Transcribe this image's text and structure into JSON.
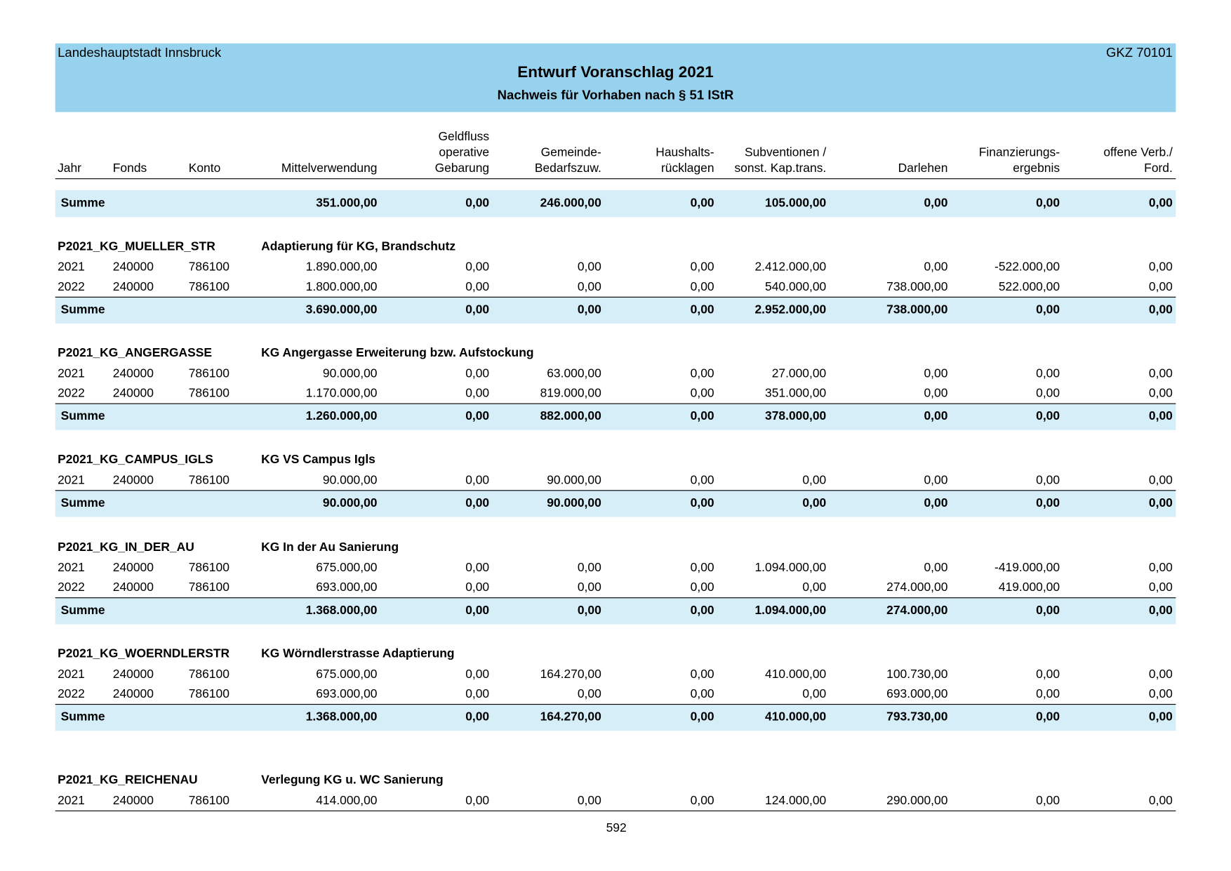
{
  "header": {
    "left": "Landeshauptstadt Innsbruck",
    "right": "GKZ 70101",
    "title": "Entwurf Voranschlag 2021",
    "subtitle": "Nachweis für Vorhaben nach § 51 IStR"
  },
  "columns": [
    [
      "Jahr"
    ],
    [
      "Fonds"
    ],
    [
      "Konto"
    ],
    [
      "Mittelverwendung"
    ],
    [
      "Geldfluss",
      "operative",
      "Gebarung"
    ],
    [
      "Gemeinde-",
      "Bedarfszuw."
    ],
    [
      "Haushalts-",
      "rücklagen"
    ],
    [
      "Subventionen /",
      "sonst. Kap.trans."
    ],
    [
      "Darlehen"
    ],
    [
      "Finanzierungs-",
      "ergebnis"
    ],
    [
      "offene Verb./",
      "Ford."
    ]
  ],
  "total": {
    "label": "Summe",
    "values": [
      "351.000,00",
      "0,00",
      "246.000,00",
      "0,00",
      "105.000,00",
      "0,00",
      "0,00",
      "0,00"
    ]
  },
  "sections": [
    {
      "code": "P2021_KG_MUELLER_STR",
      "description": "Adaptierung für KG, Brandschutz",
      "rows": [
        [
          "2021",
          "240000",
          "786100",
          "1.890.000,00",
          "0,00",
          "0,00",
          "0,00",
          "2.412.000,00",
          "0,00",
          "-522.000,00",
          "0,00"
        ],
        [
          "2022",
          "240000",
          "786100",
          "1.800.000,00",
          "0,00",
          "0,00",
          "0,00",
          "540.000,00",
          "738.000,00",
          "522.000,00",
          "0,00"
        ]
      ],
      "summe": {
        "label": "Summe",
        "values": [
          "3.690.000,00",
          "0,00",
          "0,00",
          "0,00",
          "2.952.000,00",
          "738.000,00",
          "0,00",
          "0,00"
        ]
      }
    },
    {
      "code": "P2021_KG_ANGERGASSE",
      "description": "KG Angergasse Erweiterung bzw. Aufstockung",
      "rows": [
        [
          "2021",
          "240000",
          "786100",
          "90.000,00",
          "0,00",
          "63.000,00",
          "0,00",
          "27.000,00",
          "0,00",
          "0,00",
          "0,00"
        ],
        [
          "2022",
          "240000",
          "786100",
          "1.170.000,00",
          "0,00",
          "819.000,00",
          "0,00",
          "351.000,00",
          "0,00",
          "0,00",
          "0,00"
        ]
      ],
      "summe": {
        "label": "Summe",
        "values": [
          "1.260.000,00",
          "0,00",
          "882.000,00",
          "0,00",
          "378.000,00",
          "0,00",
          "0,00",
          "0,00"
        ]
      }
    },
    {
      "code": "P2021_KG_CAMPUS_IGLS",
      "description": "KG VS Campus Igls",
      "rows": [
        [
          "2021",
          "240000",
          "786100",
          "90.000,00",
          "0,00",
          "90.000,00",
          "0,00",
          "0,00",
          "0,00",
          "0,00",
          "0,00"
        ]
      ],
      "summe": {
        "label": "Summe",
        "values": [
          "90.000,00",
          "0,00",
          "90.000,00",
          "0,00",
          "0,00",
          "0,00",
          "0,00",
          "0,00"
        ]
      }
    },
    {
      "code": "P2021_KG_IN_DER_AU",
      "description": "KG In der Au Sanierung",
      "rows": [
        [
          "2021",
          "240000",
          "786100",
          "675.000,00",
          "0,00",
          "0,00",
          "0,00",
          "1.094.000,00",
          "0,00",
          "-419.000,00",
          "0,00"
        ],
        [
          "2022",
          "240000",
          "786100",
          "693.000,00",
          "0,00",
          "0,00",
          "0,00",
          "0,00",
          "274.000,00",
          "419.000,00",
          "0,00"
        ]
      ],
      "summe": {
        "label": "Summe",
        "values": [
          "1.368.000,00",
          "0,00",
          "0,00",
          "0,00",
          "1.094.000,00",
          "274.000,00",
          "0,00",
          "0,00"
        ]
      }
    },
    {
      "code": "P2021_KG_WOERNDLERSTR",
      "description": "KG Wörndlerstrasse Adaptierung",
      "rows": [
        [
          "2021",
          "240000",
          "786100",
          "675.000,00",
          "0,00",
          "164.270,00",
          "0,00",
          "410.000,00",
          "100.730,00",
          "0,00",
          "0,00"
        ],
        [
          "2022",
          "240000",
          "786100",
          "693.000,00",
          "0,00",
          "0,00",
          "0,00",
          "0,00",
          "693.000,00",
          "0,00",
          "0,00"
        ]
      ],
      "summe": {
        "label": "Summe",
        "values": [
          "1.368.000,00",
          "0,00",
          "164.270,00",
          "0,00",
          "410.000,00",
          "793.730,00",
          "0,00",
          "0,00"
        ]
      }
    },
    {
      "code": "P2021_KG_REICHENAU",
      "description": "Verlegung KG u. WC Sanierung",
      "rows": [
        [
          "2021",
          "240000",
          "786100",
          "414.000,00",
          "0,00",
          "0,00",
          "0,00",
          "124.000,00",
          "290.000,00",
          "0,00",
          "0,00"
        ]
      ]
    }
  ],
  "page_number": "592"
}
